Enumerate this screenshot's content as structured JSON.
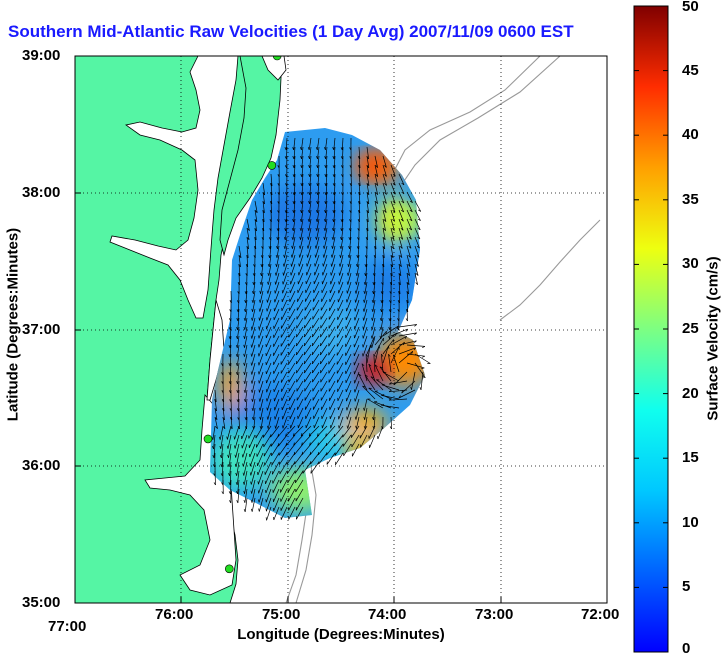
{
  "chart_data": {
    "type": "heatmap",
    "title": "Southern Mid-Atlantic Raw Velocities (1 Day Avg) 2007/11/09 0600 EST",
    "xlabel": "Longitude (Degrees:Minutes)",
    "ylabel": "Latitude (Degrees:Minutes)",
    "colorbar_label": "Surface Velocity (cm/s)",
    "x_ticks": [
      "77:00",
      "76:00",
      "75:00",
      "74:00",
      "73:00",
      "72:00"
    ],
    "y_ticks": [
      "39:00",
      "38:00",
      "37:00",
      "36:00",
      "35:00"
    ],
    "colorbar_ticks": [
      "50",
      "45",
      "40",
      "35",
      "30",
      "25",
      "20",
      "15",
      "10",
      "5",
      "0"
    ],
    "xlim": [
      -77,
      -72
    ],
    "ylim": [
      35,
      39
    ],
    "clim": [
      0,
      50
    ],
    "grid": true,
    "colormap": "jet",
    "hotspots": [
      {
        "lon": -74.2,
        "lat": 36.7,
        "speed": 45
      },
      {
        "lon": -74.2,
        "lat": 38.2,
        "speed": 40
      },
      {
        "lon": -73.9,
        "lat": 37.8,
        "speed": 28
      },
      {
        "lon": -74.3,
        "lat": 36.1,
        "speed": 35
      }
    ],
    "stations": [
      {
        "lon": -75.1,
        "lat": 39.0
      },
      {
        "lon": -75.15,
        "lat": 38.2
      },
      {
        "lon": -75.75,
        "lat": 36.2
      },
      {
        "lon": -75.55,
        "lat": 35.25
      }
    ]
  },
  "colors": {
    "land": "#55f5a4",
    "title": "#1a1aff",
    "station": "#22dd22",
    "isobath": "#999999"
  }
}
